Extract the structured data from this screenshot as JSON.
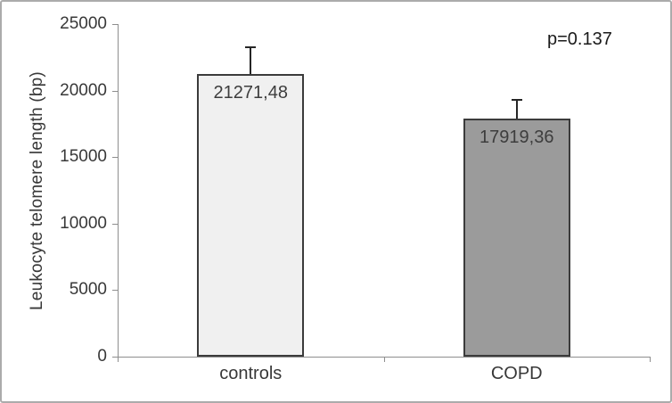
{
  "chart_data": {
    "type": "bar",
    "title": "",
    "ylabel": "Leukocyte telomere length (bp)",
    "xlabel": "",
    "categories": [
      "controls",
      "COPD"
    ],
    "values": [
      21271.48,
      17919.36
    ],
    "value_labels": [
      "21271,48",
      "17919,36"
    ],
    "errors_plus": [
      2000,
      1400
    ],
    "ylim": [
      0,
      25000
    ],
    "yticks": [
      0,
      5000,
      10000,
      15000,
      20000,
      25000
    ],
    "ytick_labels": [
      "0",
      "5000",
      "10000",
      "15000",
      "20000",
      "25000"
    ],
    "annotation": "p=0.137",
    "legend_position": "none",
    "grid": false,
    "bar_fill_colors": [
      "#f0f0f0",
      "#9b9b9b"
    ],
    "bar_border_color": "#3b3b3b",
    "error_bar_color": "#262626",
    "axis_color": "#8e8e8e",
    "text_color": "#383838"
  }
}
